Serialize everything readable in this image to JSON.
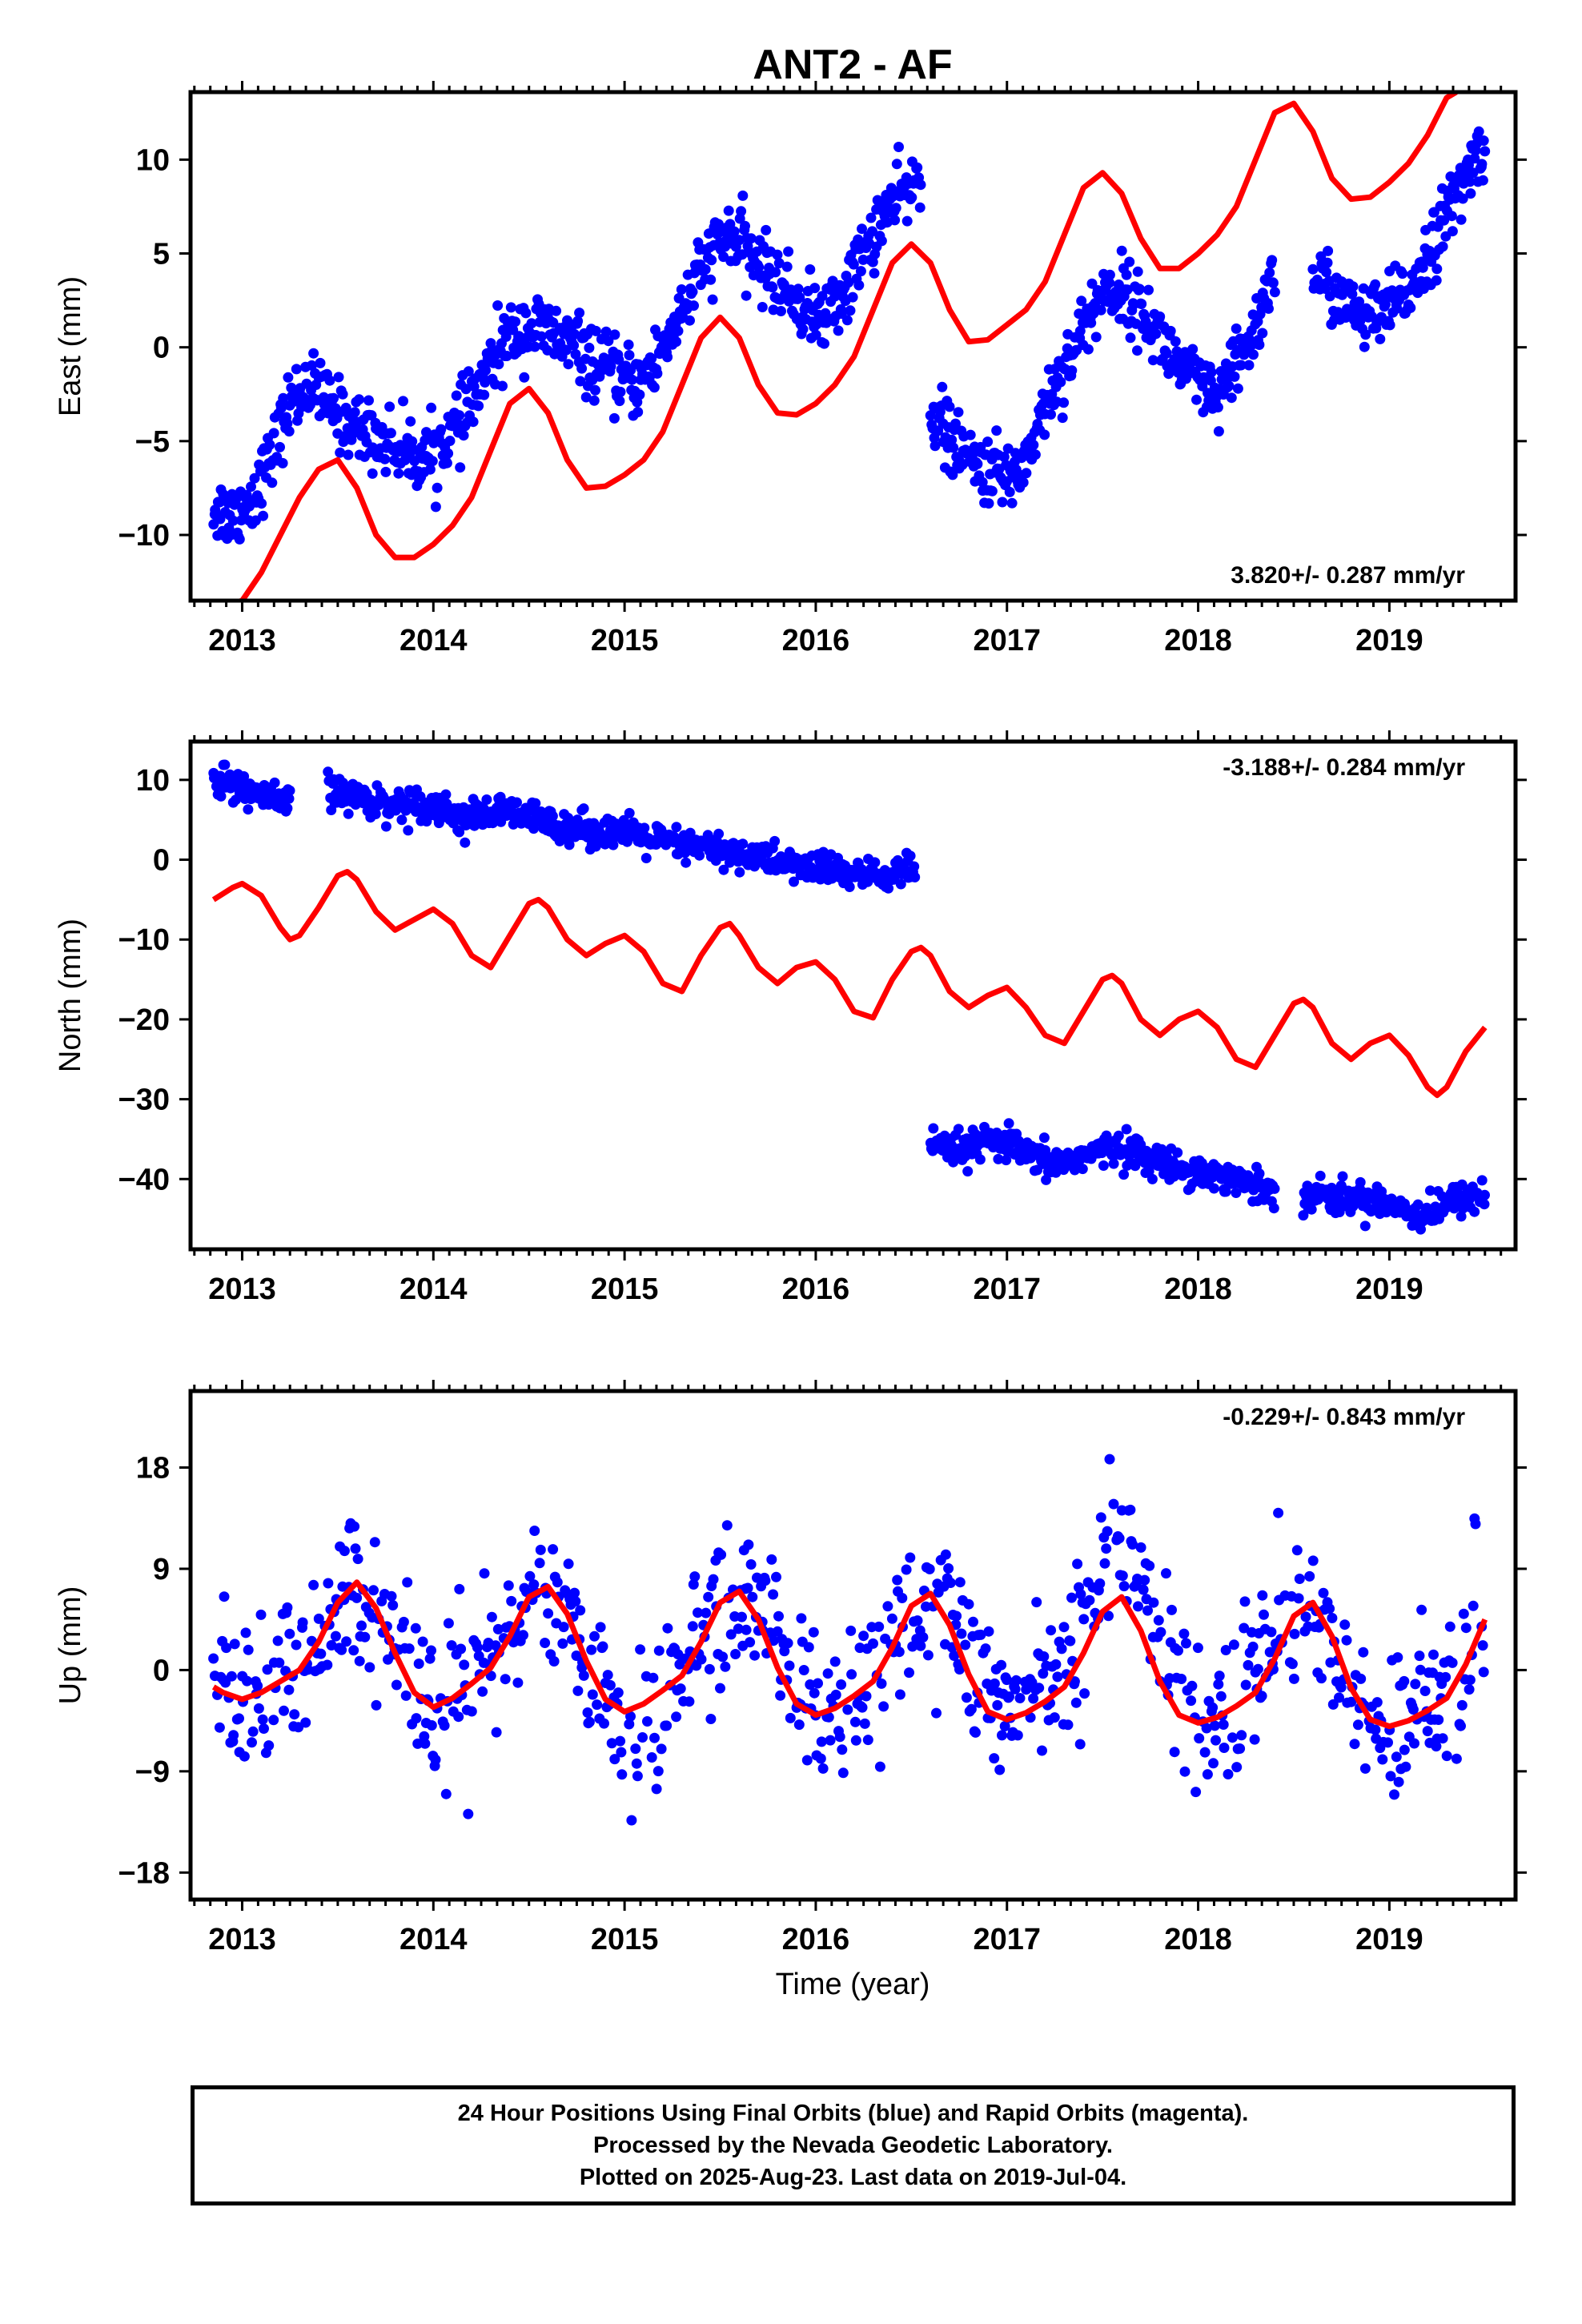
{
  "chart_data": {
    "title": "ANT2 - AF",
    "type": "scatter",
    "xlabel": "Time (year)",
    "x_tick_labels": [
      "2013",
      "2014",
      "2015",
      "2016",
      "2017",
      "2018",
      "2019"
    ],
    "xlim": [
      2012.73,
      2019.66
    ],
    "series_colors": {
      "data": "#0000ff",
      "model": "#ff0000"
    },
    "panels": [
      {
        "id": "east",
        "ylabel": "East (mm)",
        "ylim": [
          -13.5,
          13.6
        ],
        "yticks": [
          10,
          5,
          0,
          -5,
          -10
        ],
        "y_tick_labels": [
          "10",
          "5",
          "0",
          "-5",
          "-10"
        ],
        "rate": "3.820+/- 0.287 mm/yr",
        "data_segments": [
          {
            "x": [
              2012.85,
              2012.95,
              2013.05,
              2013.15,
              2013.25,
              2013.35,
              2013.45,
              2013.55,
              2013.65,
              2013.75,
              2013.85,
              2013.95,
              2014.05,
              2014.15,
              2014.25,
              2014.35,
              2014.45,
              2014.55,
              2014.65,
              2014.75,
              2014.85,
              2014.95,
              2015.05,
              2015.15,
              2015.25,
              2015.35,
              2015.45,
              2015.55,
              2015.65,
              2015.75,
              2015.85,
              2015.95,
              2016.05,
              2016.15,
              2016.25,
              2016.35,
              2016.45,
              2016.55
            ],
            "y": [
              -8.5,
              -9,
              -8,
              -6,
              -3,
              -2,
              -3,
              -4,
              -4.5,
              -5,
              -5.5,
              -6,
              -5,
              -4,
              -2,
              0,
              1,
              1,
              0.5,
              0,
              -1,
              -1.5,
              -2,
              -1,
              1,
              3,
              5,
              6,
              5,
              4,
              3,
              2,
              1.5,
              3,
              5,
              7,
              8,
              9
            ]
          },
          {
            "x": [
              2016.6,
              2016.7,
              2016.8,
              2016.9,
              2017.0,
              2017.1,
              2017.2,
              2017.3,
              2017.4,
              2017.5,
              2017.6,
              2017.7,
              2017.8,
              2017.9,
              2018.0,
              2018.1,
              2018.2,
              2018.3,
              2018.4
            ],
            "y": [
              -3,
              -5,
              -6,
              -6.5,
              -7,
              -6,
              -3,
              -1,
              1,
              3,
              3,
              2,
              0.5,
              -1,
              -2,
              -3,
              -1,
              1,
              4
            ]
          },
          {
            "x": [
              2018.6,
              2018.7,
              2018.8,
              2018.9,
              2019.0,
              2019.1,
              2019.2,
              2019.3,
              2019.4,
              2019.5
            ],
            "y": [
              4,
              3,
              2,
              1.5,
              2,
              3,
              5,
              7,
              9,
              11
            ]
          }
        ],
        "model": {
          "x": [
            2012.9,
            2013.0,
            2013.1,
            2013.2,
            2013.3,
            2013.4,
            2013.5,
            2013.6,
            2013.7,
            2013.8,
            2013.9,
            2014.0,
            2014.1,
            2014.2,
            2014.3,
            2014.4,
            2014.5,
            2014.6,
            2014.7,
            2014.8,
            2014.9,
            2015.0,
            2015.1,
            2015.2,
            2015.3,
            2015.4,
            2015.5,
            2015.6,
            2015.7,
            2015.8,
            2015.9,
            2016.0,
            2016.1,
            2016.2,
            2016.3,
            2016.4,
            2016.5,
            2016.6,
            2016.7,
            2016.8,
            2016.9,
            2017.0,
            2017.1,
            2017.2,
            2017.3,
            2017.4,
            2017.5,
            2017.6,
            2017.7,
            2017.8,
            2017.9,
            2018.0,
            2018.1,
            2018.2,
            2018.3,
            2018.4,
            2018.5,
            2018.6,
            2018.7,
            2018.8,
            2018.9,
            2019.0,
            2019.1,
            2019.2,
            2019.3,
            2019.35
          ],
          "y": [
            -13.8,
            -13.5,
            -12,
            -10,
            -8,
            -6.5,
            -6,
            -7.5,
            -10,
            -11.2,
            -11.2,
            -10.5,
            -9.5,
            -8,
            -5.5,
            -3,
            -2.2,
            -3.5,
            -6,
            -7.5,
            -7.4,
            -6.8,
            -6,
            -4.5,
            -2,
            0.5,
            1.6,
            0.5,
            -2,
            -3.5,
            -3.6,
            -3,
            -2,
            -0.5,
            2,
            4.5,
            5.5,
            4.5,
            2,
            0.3,
            0.4,
            1.2,
            2,
            3.5,
            6,
            8.5,
            9.3,
            8.2,
            5.8,
            4.2,
            4.2,
            5,
            6,
            7.5,
            10,
            12.5,
            13,
            11.5,
            9,
            7.9,
            8,
            8.8,
            9.8,
            11.3,
            13.3,
            13.6
          ]
        }
      },
      {
        "id": "north",
        "ylabel": "North (mm)",
        "ylim": [
          -48.8,
          14.8
        ],
        "yticks": [
          10,
          0,
          -10,
          -20,
          -30,
          -40
        ],
        "y_tick_labels": [
          "10",
          "0",
          "-10",
          "-20",
          "-30",
          "-40"
        ],
        "rate": "-3.188+/- 0.284 mm/yr",
        "data_segments": [
          {
            "x": [
              2012.85,
              2012.95,
              2013.05,
              2013.15,
              2013.25
            ],
            "y": [
              10,
              9.5,
              8.5,
              7.5,
              7
            ]
          },
          {
            "x": [
              2013.45,
              2013.55,
              2013.65,
              2013.75,
              2013.85,
              2013.95,
              2014.05,
              2014.15,
              2014.25,
              2014.35,
              2014.45,
              2014.55,
              2014.65,
              2014.75,
              2014.85,
              2014.95,
              2015.05,
              2015.15,
              2015.25,
              2015.35,
              2015.45,
              2015.55,
              2015.65,
              2015.75,
              2015.85,
              2015.95,
              2016.05,
              2016.15,
              2016.25,
              2016.35,
              2016.45,
              2016.52
            ],
            "y": [
              9,
              8,
              7.5,
              7,
              7,
              7,
              6.5,
              5,
              5.5,
              6,
              5.5,
              5,
              4.5,
              4,
              3.5,
              3.5,
              3,
              2.5,
              2,
              1.5,
              1.5,
              1,
              0.5,
              0,
              -0.5,
              -1,
              -1,
              -1.5,
              -2,
              -2,
              -1.5,
              -1
            ]
          },
          {
            "x": [
              2016.6,
              2016.7,
              2016.8,
              2016.9,
              2017.0,
              2017.1,
              2017.2,
              2017.3,
              2017.4,
              2017.5,
              2017.6,
              2017.7,
              2017.8,
              2017.9,
              2018.0,
              2018.1,
              2018.2,
              2018.3,
              2018.4
            ],
            "y": [
              -36,
              -36.5,
              -36,
              -35.5,
              -35.5,
              -37,
              -38,
              -38,
              -37,
              -36.5,
              -36,
              -37,
              -38,
              -38.5,
              -39,
              -39.5,
              -40,
              -41,
              -41
            ]
          },
          {
            "x": [
              2018.55,
              2018.65,
              2018.75,
              2018.85,
              2018.95,
              2019.05,
              2019.15,
              2019.25,
              2019.35,
              2019.45,
              2019.5
            ],
            "y": [
              -42,
              -42,
              -42.5,
              -42.5,
              -42.5,
              -43.5,
              -44.5,
              -44,
              -42.5,
              -42,
              -42
            ]
          }
        ],
        "model": {
          "x": [
            2012.85,
            2012.95,
            2013.0,
            2013.1,
            2013.2,
            2013.25,
            2013.3,
            2013.4,
            2013.5,
            2013.55,
            2013.6,
            2013.7,
            2013.8,
            2013.9,
            2014.0,
            2014.1,
            2014.2,
            2014.3,
            2014.4,
            2014.5,
            2014.55,
            2014.6,
            2014.7,
            2014.8,
            2014.9,
            2015.0,
            2015.1,
            2015.2,
            2015.3,
            2015.4,
            2015.5,
            2015.55,
            2015.6,
            2015.7,
            2015.8,
            2015.9,
            2016.0,
            2016.1,
            2016.2,
            2016.3,
            2016.4,
            2016.5,
            2016.55,
            2016.6,
            2016.7,
            2016.8,
            2016.9,
            2017.0,
            2017.1,
            2017.2,
            2017.3,
            2017.4,
            2017.5,
            2017.55,
            2017.6,
            2017.7,
            2017.8,
            2017.9,
            2018.0,
            2018.1,
            2018.2,
            2018.3,
            2018.4,
            2018.5,
            2018.55,
            2018.6,
            2018.7,
            2018.8,
            2018.9,
            2019.0,
            2019.1,
            2019.2,
            2019.25,
            2019.3,
            2019.4,
            2019.5
          ],
          "y": [
            -5,
            -3.5,
            -3,
            -4.5,
            -8.5,
            -10,
            -9.5,
            -6,
            -2,
            -1.5,
            -2.5,
            -6.5,
            -8.8,
            -7.5,
            -6.2,
            -8,
            -12,
            -13.5,
            -9.5,
            -5.5,
            -5,
            -6,
            -10,
            -12,
            -10.5,
            -9.5,
            -11.5,
            -15.5,
            -16.5,
            -12,
            -8.5,
            -8,
            -9.5,
            -13.5,
            -15.5,
            -13.5,
            -12.8,
            -15,
            -19,
            -19.8,
            -15,
            -11.5,
            -11,
            -12,
            -16.5,
            -18.5,
            -17,
            -16,
            -18.5,
            -22,
            -23,
            -19,
            -15,
            -14.5,
            -15.5,
            -20,
            -22,
            -20,
            -19,
            -21,
            -25,
            -26,
            -22,
            -18,
            -17.5,
            -18.5,
            -23,
            -25,
            -23,
            -22,
            -24.5,
            -28.5,
            -29.5,
            -28.5,
            -24,
            -21
          ]
        }
      },
      {
        "id": "up",
        "ylabel": "Up (mm)",
        "ylim": [
          -20.4,
          24.8
        ],
        "yticks": [
          18,
          9,
          0,
          -9,
          -18
        ],
        "y_tick_labels": [
          "18",
          "9",
          "0",
          "-9",
          "-18"
        ],
        "rate": "-0.229+/- 0.843 mm/yr",
        "data_segments": [
          {
            "x": [
              2012.85,
              2012.95,
              2013.05,
              2013.15,
              2013.25,
              2013.35,
              2013.45,
              2013.55,
              2013.65,
              2013.75,
              2013.85,
              2013.95,
              2014.05,
              2014.15,
              2014.25,
              2014.35,
              2014.45,
              2014.55,
              2014.65,
              2014.75,
              2014.85,
              2014.95,
              2015.05,
              2015.15,
              2015.25,
              2015.35,
              2015.45,
              2015.55,
              2015.65,
              2015.75,
              2015.85,
              2015.95,
              2016.05,
              2016.15,
              2016.25,
              2016.35,
              2016.45,
              2016.55,
              2016.65,
              2016.75,
              2016.85,
              2016.95,
              2017.05,
              2017.15,
              2017.25,
              2017.35,
              2017.45,
              2017.55,
              2017.65,
              2017.75,
              2017.85,
              2017.95,
              2018.05,
              2018.15,
              2018.25,
              2018.35,
              2018.45,
              2018.55,
              2018.65,
              2018.75,
              2018.85,
              2018.95,
              2019.05,
              2019.15,
              2019.25,
              2019.35,
              2019.45,
              2019.5
            ],
            "y": [
              1,
              -2,
              -3,
              -1,
              0,
              2,
              4,
              7,
              6,
              4,
              0,
              -3,
              -4,
              -2,
              0,
              2,
              5,
              7,
              6,
              3,
              -1,
              -5,
              -7,
              -5,
              -2,
              1,
              3,
              6,
              7,
              4,
              0,
              -3,
              -4,
              -3,
              -1,
              2,
              4,
              7,
              6,
              3,
              0,
              -2,
              -3,
              -2,
              0,
              2,
              5,
              12,
              11,
              7,
              2,
              -2,
              -3,
              -4,
              -2,
              1,
              4,
              6,
              4,
              0,
              -2,
              -5,
              -6,
              -4,
              -2,
              0,
              3,
              5
            ]
          }
        ],
        "model": {
          "x": [
            2012.85,
            2012.9,
            2013.0,
            2013.1,
            2013.2,
            2013.3,
            2013.4,
            2013.5,
            2013.6,
            2013.7,
            2013.8,
            2013.9,
            2014.0,
            2014.1,
            2014.2,
            2014.3,
            2014.4,
            2014.5,
            2014.6,
            2014.7,
            2014.8,
            2014.9,
            2015.0,
            2015.1,
            2015.2,
            2015.3,
            2015.4,
            2015.5,
            2015.6,
            2015.7,
            2015.8,
            2015.9,
            2016.0,
            2016.1,
            2016.2,
            2016.3,
            2016.4,
            2016.5,
            2016.6,
            2016.7,
            2016.8,
            2016.9,
            2017.0,
            2017.1,
            2017.2,
            2017.3,
            2017.4,
            2017.5,
            2017.6,
            2017.7,
            2017.8,
            2017.9,
            2018.0,
            2018.1,
            2018.2,
            2018.3,
            2018.4,
            2018.5,
            2018.6,
            2018.7,
            2018.8,
            2018.9,
            2019.0,
            2019.1,
            2019.2,
            2019.3,
            2019.4,
            2019.5
          ],
          "y": [
            -1.5,
            -2,
            -2.6,
            -2,
            -1,
            0,
            2.5,
            6,
            7.8,
            5.5,
            1.5,
            -2,
            -3.3,
            -2.5,
            -1.2,
            0.2,
            3,
            6.5,
            7.4,
            5,
            0.8,
            -2.6,
            -3.7,
            -3,
            -1.8,
            -0.5,
            2.5,
            6,
            7,
            4.5,
            0.2,
            -3,
            -4,
            -3.4,
            -2.3,
            -1,
            2,
            5.7,
            6.8,
            4,
            -0.4,
            -3.7,
            -4.4,
            -3.8,
            -2.8,
            -1.5,
            1.5,
            5.2,
            6.5,
            3.5,
            -1,
            -4,
            -4.7,
            -4.2,
            -3.2,
            -2,
            1,
            4.8,
            6,
            3,
            -1.6,
            -4.4,
            -5,
            -4.5,
            -3.6,
            -2.5,
            0.5,
            4.5
          ]
        }
      }
    ]
  },
  "footer": {
    "line1": "24 Hour Positions Using Final Orbits (blue) and Rapid Orbits (magenta).",
    "line2": "Processed by the Nevada Geodetic Laboratory.",
    "line3": "Plotted on 2025-Aug-23. Last data on 2019-Jul-04."
  }
}
